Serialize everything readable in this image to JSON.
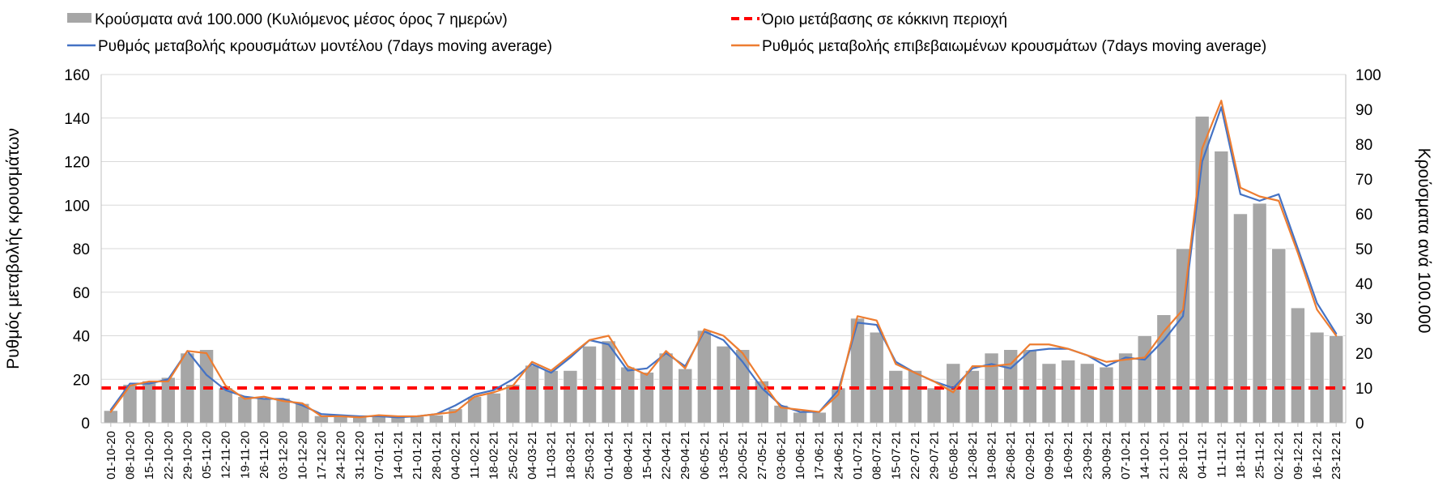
{
  "chart_data": {
    "type": "bar+line",
    "title": "",
    "legend": {
      "position": "top",
      "entries": [
        {
          "label": "Κρούσματα ανά 100.000 (Κυλιόμενος μέσος όρος 7 ημερών)",
          "kind": "bar",
          "color": "#a6a6a6"
        },
        {
          "label": "Όριο μετάβασης σε κόκκινη περιοχή",
          "kind": "dashed-line",
          "color": "#ff0000"
        },
        {
          "label": "Ρυθμός μεταβολής κρουσμάτων μοντέλου (7days moving average)",
          "kind": "line",
          "color": "#4472c4"
        },
        {
          "label": "Ρυθμός μεταβολής επιβεβαιωμένων κρουσμάτων (7days moving average)",
          "kind": "line",
          "color": "#ed7d31"
        }
      ]
    },
    "ylabel_left": "Ρυθμός μεταβολής κρουσμάτων",
    "ylabel_right": "Κρούσματα ανά 100.000",
    "ylim_left": [
      0,
      160
    ],
    "ylim_right": [
      0,
      100
    ],
    "yticks_left": [
      "0",
      "20",
      "40",
      "60",
      "80",
      "100",
      "120",
      "140",
      "160"
    ],
    "yticks_right": [
      "0",
      "10",
      "20",
      "30",
      "40",
      "50",
      "60",
      "70",
      "80",
      "90",
      "100"
    ],
    "grid": true,
    "x_categories": [
      "01-10-20",
      "08-10-20",
      "15-10-20",
      "22-10-20",
      "29-10-20",
      "05-11-20",
      "12-11-20",
      "19-11-20",
      "26-11-20",
      "03-12-20",
      "10-12-20",
      "17-12-20",
      "24-12-20",
      "31-12-20",
      "07-01-21",
      "14-01-21",
      "21-01-21",
      "28-01-21",
      "04-02-21",
      "11-02-21",
      "18-02-21",
      "25-02-21",
      "04-03-21",
      "11-03-21",
      "18-03-21",
      "25-03-21",
      "01-04-21",
      "08-04-21",
      "15-04-21",
      "22-04-21",
      "29-04-21",
      "06-05-21",
      "13-05-21",
      "20-05-21",
      "27-05-21",
      "03-06-21",
      "10-06-21",
      "17-06-21",
      "24-06-21",
      "01-07-21",
      "08-07-21",
      "15-07-21",
      "22-07-21",
      "29-07-21",
      "05-08-21",
      "12-08-21",
      "19-08-21",
      "26-08-21",
      "02-09-21",
      "09-09-21",
      "16-09-21",
      "23-09-21",
      "30-09-21",
      "07-10-21",
      "14-10-21",
      "21-10-21",
      "28-10-21",
      "04-11-21",
      "11-11-21",
      "18-11-21",
      "25-11-21",
      "02-12-21",
      "09-12-21",
      "16-12-21",
      "23-12-21"
    ],
    "red_zone_threshold": {
      "left_axis_value": 16,
      "right_axis_value": 10
    },
    "series": [
      {
        "name": "Κρούσματα ανά 100.000 (Κυλιόμενος μέσος όρος 7 ημερών)",
        "type": "bar",
        "axis": "right",
        "values": [
          3.5,
          11,
          12,
          13,
          20,
          21,
          10,
          7.5,
          7,
          7,
          5.5,
          2,
          2.2,
          2,
          2,
          1.8,
          1.8,
          2.2,
          4,
          7.5,
          8.5,
          11,
          16.5,
          15,
          15,
          22,
          23.5,
          16,
          14.5,
          20,
          15.5,
          26.5,
          22,
          21,
          12,
          5,
          3,
          3,
          10,
          30,
          26,
          15,
          15,
          10,
          17,
          15,
          20,
          21,
          21,
          17,
          18,
          17,
          16,
          20,
          25,
          31,
          50,
          88,
          78,
          60,
          63,
          50,
          33,
          26,
          25
        ]
      },
      {
        "name": "Ρυθμός μεταβολής κρουσμάτων μοντέλου (7days moving average)",
        "type": "line",
        "axis": "left",
        "color": "#4472c4",
        "values": [
          6,
          18,
          18,
          20,
          33,
          22,
          15,
          12,
          11,
          11,
          8,
          4,
          3.5,
          3,
          3,
          2.5,
          3,
          4,
          8,
          13,
          15,
          20,
          27,
          23,
          30,
          38,
          36,
          24,
          25,
          32,
          26,
          42,
          38,
          28,
          16,
          8,
          5,
          5,
          15,
          46,
          45,
          28,
          23,
          19,
          16,
          25,
          27,
          25,
          33,
          34,
          34,
          31,
          26,
          30,
          29,
          38,
          49,
          120,
          145,
          105,
          102,
          105,
          80,
          55,
          41
        ]
      },
      {
        "name": "Ρυθμός μεταβολής επιβεβαιωμένων κρουσμάτων (7days moving average)",
        "type": "line",
        "axis": "left",
        "color": "#ed7d31",
        "values": [
          5,
          17,
          19,
          19,
          33,
          32,
          17,
          11,
          12,
          10,
          9,
          3,
          3,
          2.5,
          3.5,
          3,
          3,
          4,
          5,
          12,
          14,
          17,
          28,
          24,
          31,
          38,
          40,
          26,
          22,
          33,
          25,
          43,
          40,
          32,
          19,
          7,
          6,
          5,
          13,
          49,
          47,
          27,
          23,
          19,
          14,
          26,
          26,
          27,
          36,
          36,
          34,
          31,
          28,
          29,
          30,
          42,
          52,
          126,
          148,
          108,
          104,
          102,
          78,
          52,
          40
        ]
      }
    ]
  }
}
